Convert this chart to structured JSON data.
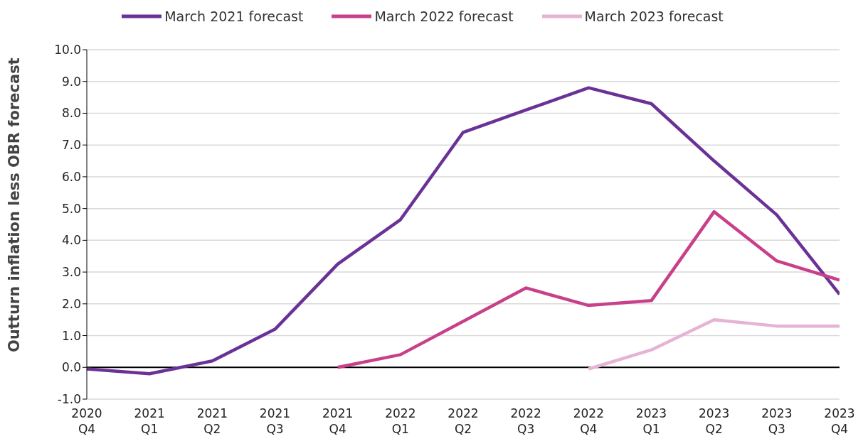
{
  "chart_data": {
    "type": "line",
    "ylabel": "Outturn inflation less OBR forecast",
    "categories": [
      "2020 Q4",
      "2021 Q1",
      "2021 Q2",
      "2021 Q3",
      "2021 Q4",
      "2022 Q1",
      "2022 Q2",
      "2022 Q3",
      "2022 Q4",
      "2023 Q1",
      "2023 Q2",
      "2023 Q3",
      "2023 Q4"
    ],
    "series": [
      {
        "name": "March 2021 forecast",
        "color": "#6a3296",
        "values": [
          -0.05,
          -0.2,
          0.2,
          1.2,
          3.25,
          4.65,
          7.4,
          8.1,
          8.8,
          8.3,
          6.5,
          4.8,
          2.3
        ]
      },
      {
        "name": "March 2022 forecast",
        "color": "#c8408a",
        "values": [
          null,
          null,
          null,
          null,
          0.0,
          0.4,
          1.45,
          2.5,
          1.95,
          2.1,
          4.9,
          3.35,
          2.75
        ]
      },
      {
        "name": "March 2023 forecast",
        "color": "#e6b3d4",
        "values": [
          null,
          null,
          null,
          null,
          null,
          null,
          null,
          null,
          -0.05,
          0.55,
          1.5,
          1.3,
          1.3
        ]
      }
    ],
    "ylim": [
      -1,
      10
    ],
    "yticks": [
      {
        "value": -1,
        "label": "-1.0"
      },
      {
        "value": 0,
        "label": "0.0"
      },
      {
        "value": 1,
        "label": "1.0"
      },
      {
        "value": 2,
        "label": "2.0"
      },
      {
        "value": 3,
        "label": "3.0"
      },
      {
        "value": 4,
        "label": "4.0"
      },
      {
        "value": 5,
        "label": "5.0"
      },
      {
        "value": 6,
        "label": "6.0"
      },
      {
        "value": 7,
        "label": "7.0"
      },
      {
        "value": 8,
        "label": "8.0"
      },
      {
        "value": 9,
        "label": "9.0"
      },
      {
        "value": 10,
        "label": "10.0"
      }
    ],
    "grid": "y",
    "legend": "top",
    "marker": "none",
    "line_style": "solid",
    "ref_lines": [
      {
        "axis": "y",
        "value": 0,
        "color": "#000000"
      }
    ]
  }
}
